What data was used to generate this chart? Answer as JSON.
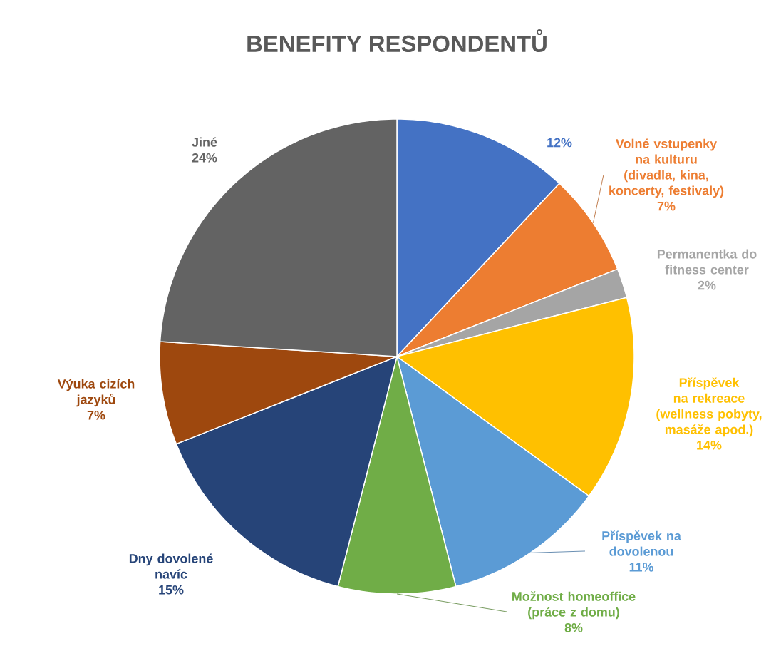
{
  "chart_data": {
    "type": "pie",
    "title": "BENEFITY RESPONDENTŮ",
    "categories": [
      null,
      "Volné vstupenky na kulturu (divadla, kina, koncerty, festivaly)",
      "Permanentka do fitness center",
      "Příspěvek na rekreace (wellness pobyty, masáže apod.)",
      "Příspěvek na dovolenou",
      "Možnost homeoffice (práce z domu)",
      "Dny dovolené navíc",
      "Výuka cizích jazyků",
      "Jiné"
    ],
    "values": [
      12,
      7,
      2,
      14,
      11,
      8,
      15,
      7,
      24
    ],
    "value_labels": [
      "12%",
      "7%",
      "2%",
      "14%",
      "11%",
      "8%",
      "15%",
      "7%",
      "24%"
    ],
    "colors": [
      "#4472c4",
      "#ed7d31",
      "#a5a5a5",
      "#ffc000",
      "#5b9bd5",
      "#70ad47",
      "#264478",
      "#9e480e",
      "#636363"
    ]
  }
}
